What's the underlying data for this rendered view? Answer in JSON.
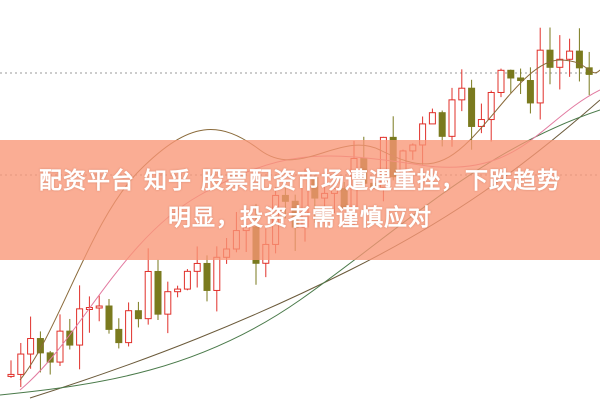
{
  "headline": {
    "line1": "配资平台 知乎 股票配资市场遭遇重挫，下跌趋势",
    "line2": "明显，投资者需谨慎应对"
  },
  "colors": {
    "banner": "#f89676",
    "candle_up": "#e0302a",
    "candle_down": "#7a7a1e",
    "ma_short": "#8a6a3a",
    "ma_mid": "#e27aa0",
    "ma_long": "#6b5a3a",
    "ma_long2": "#4a7a4a"
  }
}
